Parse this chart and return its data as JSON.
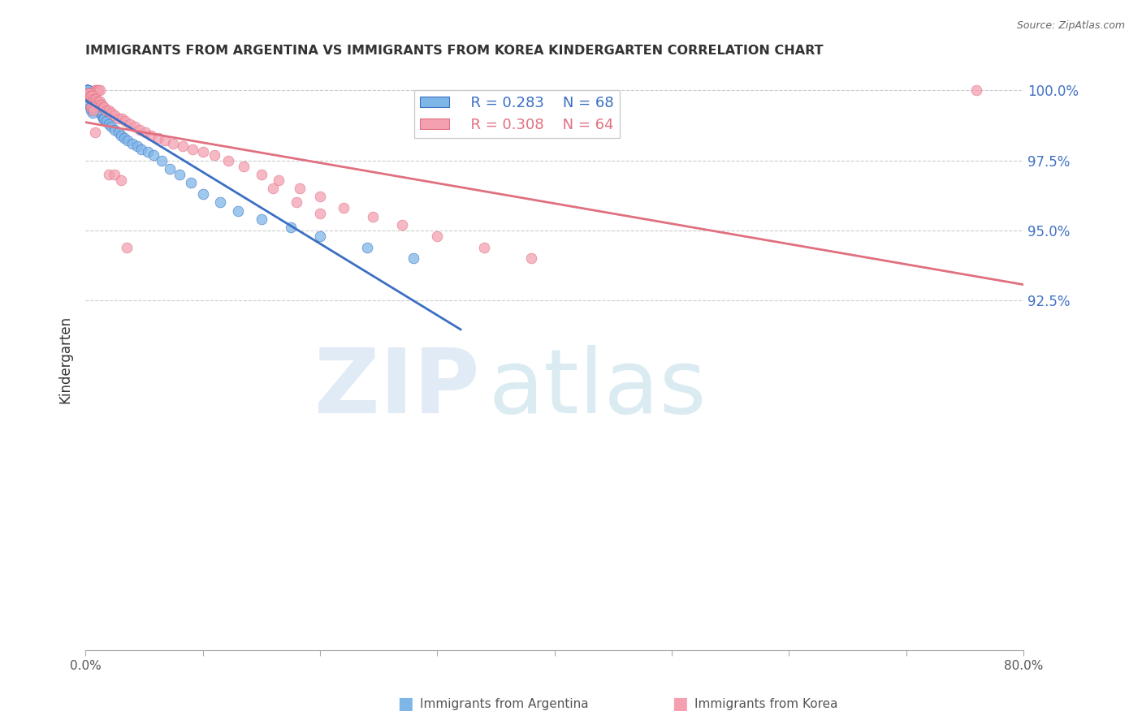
{
  "title": "IMMIGRANTS FROM ARGENTINA VS IMMIGRANTS FROM KOREA KINDERGARTEN CORRELATION CHART",
  "source": "Source: ZipAtlas.com",
  "ylabel": "Kindergarten",
  "ytick_labels": [
    "100.0%",
    "97.5%",
    "95.0%",
    "92.5%"
  ],
  "ytick_values": [
    1.0,
    0.975,
    0.95,
    0.925
  ],
  "ymin": 0.8,
  "ymax": 1.008,
  "xmin": 0.0,
  "xmax": 0.8,
  "legend_R_argentina": "R = 0.283",
  "legend_N_argentina": "N = 68",
  "legend_R_korea": "R = 0.308",
  "legend_N_korea": "N = 64",
  "color_argentina": "#7EB6E8",
  "color_korea": "#F4A0B0",
  "trendline_color_argentina": "#3A6FC4",
  "trendline_color_korea": "#E07080",
  "background_color": "#FFFFFF",
  "arg_x": [
    0.001,
    0.001,
    0.001,
    0.001,
    0.001,
    0.001,
    0.002,
    0.002,
    0.002,
    0.002,
    0.002,
    0.002,
    0.002,
    0.002,
    0.002,
    0.002,
    0.003,
    0.003,
    0.003,
    0.004,
    0.004,
    0.005,
    0.005,
    0.006,
    0.006,
    0.007,
    0.007,
    0.008,
    0.008,
    0.009,
    0.009,
    0.01,
    0.01,
    0.011,
    0.012,
    0.013,
    0.014,
    0.015,
    0.016,
    0.018,
    0.02,
    0.022,
    0.025,
    0.028,
    0.03,
    0.033,
    0.036,
    0.04,
    0.044,
    0.048,
    0.053,
    0.058,
    0.065,
    0.072,
    0.08,
    0.09,
    0.1,
    0.115,
    0.13,
    0.15,
    0.175,
    0.2,
    0.24,
    0.28,
    0.003,
    0.004,
    0.005,
    0.006
  ],
  "arg_y": [
    1.0,
    1.0,
    1.0,
    1.0,
    1.0,
    1.0,
    1.0,
    1.0,
    1.0,
    1.0,
    1.0,
    1.0,
    1.0,
    1.0,
    1.0,
    1.0,
    0.999,
    0.999,
    0.998,
    0.998,
    0.998,
    0.998,
    0.997,
    0.997,
    0.997,
    0.997,
    0.996,
    0.996,
    0.996,
    0.995,
    0.995,
    0.994,
    0.994,
    0.993,
    0.993,
    0.992,
    0.991,
    0.99,
    0.99,
    0.989,
    0.988,
    0.987,
    0.986,
    0.985,
    0.984,
    0.983,
    0.982,
    0.981,
    0.98,
    0.979,
    0.978,
    0.977,
    0.975,
    0.972,
    0.97,
    0.967,
    0.963,
    0.96,
    0.957,
    0.954,
    0.951,
    0.948,
    0.944,
    0.94,
    0.995,
    0.994,
    0.993,
    0.992
  ],
  "kor_x": [
    0.008,
    0.009,
    0.01,
    0.011,
    0.012,
    0.001,
    0.002,
    0.003,
    0.004,
    0.005,
    0.006,
    0.007,
    0.008,
    0.009,
    0.01,
    0.011,
    0.012,
    0.013,
    0.014,
    0.015,
    0.016,
    0.018,
    0.02,
    0.022,
    0.025,
    0.028,
    0.031,
    0.034,
    0.038,
    0.042,
    0.046,
    0.051,
    0.056,
    0.062,
    0.068,
    0.075,
    0.083,
    0.091,
    0.1,
    0.11,
    0.122,
    0.135,
    0.15,
    0.165,
    0.183,
    0.2,
    0.22,
    0.245,
    0.27,
    0.3,
    0.34,
    0.38,
    0.2,
    0.18,
    0.16,
    0.76,
    0.005,
    0.006,
    0.007,
    0.008,
    0.02,
    0.025,
    0.03,
    0.035
  ],
  "kor_y": [
    1.0,
    1.0,
    1.0,
    1.0,
    1.0,
    0.999,
    0.999,
    0.999,
    0.998,
    0.998,
    0.998,
    0.997,
    0.997,
    0.997,
    0.996,
    0.996,
    0.996,
    0.995,
    0.995,
    0.994,
    0.994,
    0.993,
    0.993,
    0.992,
    0.991,
    0.99,
    0.99,
    0.989,
    0.988,
    0.987,
    0.986,
    0.985,
    0.984,
    0.983,
    0.982,
    0.981,
    0.98,
    0.979,
    0.978,
    0.977,
    0.975,
    0.973,
    0.97,
    0.968,
    0.965,
    0.962,
    0.958,
    0.955,
    0.952,
    0.948,
    0.944,
    0.94,
    0.956,
    0.96,
    0.965,
    1.0,
    0.994,
    0.994,
    0.993,
    0.985,
    0.97,
    0.97,
    0.968,
    0.944
  ]
}
